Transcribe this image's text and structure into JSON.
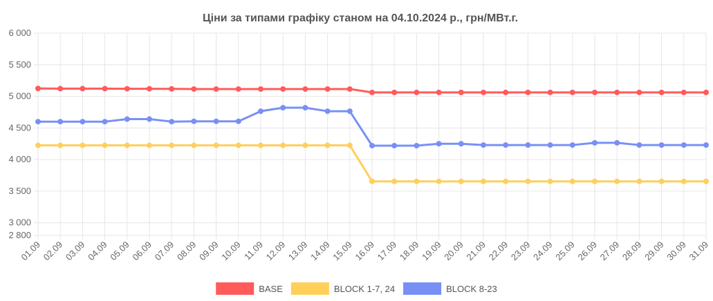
{
  "chart_data": {
    "type": "line",
    "title": "Ціни за типами графіку станом на 04.10.2024 р., грн/МВт.г.",
    "xlabel": "",
    "ylabel": "",
    "ylim": [
      2800,
      6000
    ],
    "y_ticks": [
      {
        "value": 6000,
        "label": "6 000"
      },
      {
        "value": 5500,
        "label": "5 500"
      },
      {
        "value": 5000,
        "label": "5 000"
      },
      {
        "value": 4500,
        "label": "4 500"
      },
      {
        "value": 4000,
        "label": "4 000"
      },
      {
        "value": 3500,
        "label": "3 500"
      },
      {
        "value": 3000,
        "label": "3 000"
      },
      {
        "value": 2800,
        "label": "2 800"
      }
    ],
    "grid": true,
    "legend_position": "bottom",
    "categories": [
      "01.09",
      "02.09",
      "03.09",
      "04.09",
      "05.09",
      "06.09",
      "07.09",
      "08.09",
      "09.09",
      "10.09",
      "11.09",
      "12.09",
      "13.09",
      "14.09",
      "15.09",
      "16.09",
      "17.09",
      "18.09",
      "19.09",
      "20.09",
      "21.09",
      "22.09",
      "23.09",
      "24.09",
      "25.09",
      "26.09",
      "27.09",
      "28.09",
      "29.09",
      "30.09",
      "31.09"
    ],
    "series": [
      {
        "name": "BASE",
        "color": "#ff5b5b",
        "values": [
          5125,
          5122,
          5122,
          5122,
          5120,
          5120,
          5118,
          5116,
          5116,
          5116,
          5116,
          5116,
          5116,
          5116,
          5116,
          5062,
          5062,
          5062,
          5062,
          5062,
          5062,
          5062,
          5062,
          5062,
          5062,
          5062,
          5062,
          5062,
          5062,
          5062,
          5062
        ]
      },
      {
        "name": "BLOCK 1-7, 24",
        "color": "#ffcf5a",
        "values": [
          4225,
          4225,
          4225,
          4225,
          4225,
          4225,
          4225,
          4225,
          4225,
          4225,
          4225,
          4225,
          4225,
          4225,
          4225,
          3655,
          3655,
          3655,
          3655,
          3655,
          3655,
          3655,
          3655,
          3655,
          3655,
          3655,
          3655,
          3655,
          3655,
          3655,
          3655
        ]
      },
      {
        "name": "BLOCK 8-23",
        "color": "#7890f5",
        "values": [
          4600,
          4600,
          4600,
          4600,
          4640,
          4640,
          4600,
          4605,
          4605,
          4605,
          4765,
          4820,
          4820,
          4765,
          4765,
          4220,
          4220,
          4220,
          4250,
          4250,
          4230,
          4230,
          4230,
          4230,
          4230,
          4265,
          4265,
          4230,
          4230,
          4230,
          4230
        ]
      }
    ]
  }
}
